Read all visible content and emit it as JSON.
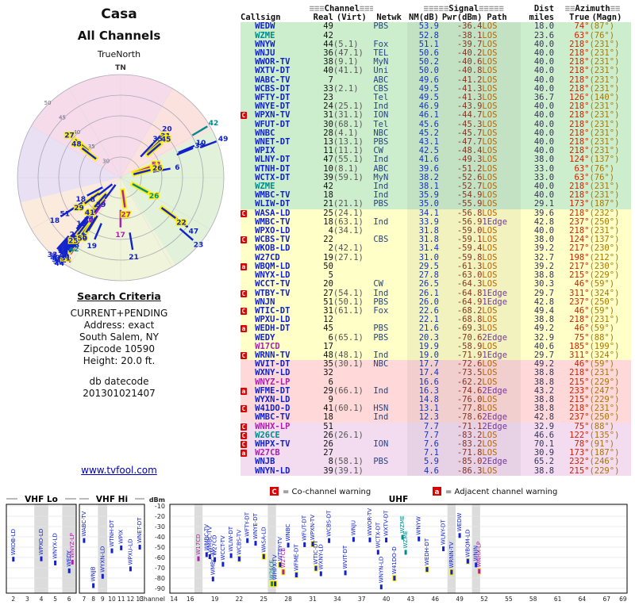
{
  "page": {
    "title1": "Casa",
    "title2": "All Channels",
    "compass_label": "TrueNorth",
    "north_marker": "TN",
    "link": "www.tvfool.com"
  },
  "search_criteria": {
    "heading": "Search Criteria",
    "lines": [
      "CURRENT+PENDING",
      "Address: exact",
      "South Salem, NY",
      "Zipcode 10590",
      "Height: 20.0 ft."
    ],
    "db_label": "db datecode",
    "db_value": "201301021407"
  },
  "legend": {
    "c_symbol": "C",
    "c_text": "= Co-channel warning",
    "a_symbol": "a",
    "a_text": "= Adjacent channel warning"
  },
  "radar": {
    "ring_labels": [
      "30",
      "35",
      "40",
      "45",
      "50"
    ]
  },
  "spectrum": {
    "dbm_label": "dBm",
    "channel_axis_label": "Channel",
    "vhf_lo_label": "VHF Lo",
    "vhf_hi_label": "VHF Hi",
    "uhf_label": "UHF",
    "dbm_ticks": [
      -10,
      -20,
      -30,
      -40,
      -50,
      -60,
      -70,
      -80,
      -90
    ],
    "vhf_ticks": [
      2,
      3,
      4,
      5,
      6,
      7,
      8,
      9,
      10,
      11,
      12,
      13
    ],
    "uhf_ticks": [
      14,
      16,
      19,
      22,
      25,
      28,
      31,
      34,
      37,
      40,
      43,
      46,
      49,
      52,
      55,
      58,
      61,
      64,
      67,
      69
    ],
    "gray_channels": [
      4,
      6,
      9,
      17,
      26,
      48,
      51
    ]
  },
  "table": {
    "deco": {
      "d2": "≡≡",
      "d3": "≡≡≡",
      "d5": "≡≡≡≡≡"
    },
    "group_headers": {
      "channel": "Channel",
      "signal": "Signal",
      "dist": "Dist",
      "azimuth": "Azimuth"
    },
    "columns": [
      "Callsign",
      "Real",
      "(Virt)",
      "Netwk",
      "NM(dB)",
      "Pwr(dBm)",
      "Path",
      "miles",
      "True",
      "(Magn)"
    ],
    "rows": [
      {
        "w": "",
        "cs": "WEDW",
        "real": "49",
        "virt": "",
        "net": "PBS",
        "nm": "53.9",
        "pwr": "-36.4",
        "path": "LOS",
        "mi": "18.0",
        "tru": "74°",
        "mag": "(87°)",
        "band": "green",
        "c": "d"
      },
      {
        "w": "",
        "cs": "WZME",
        "real": "42",
        "virt": "",
        "net": "",
        "nm": "52.8",
        "pwr": "-38.1",
        "path": "LOS",
        "mi": "23.6",
        "tru": "63°",
        "mag": "(76°)",
        "band": "green",
        "c": "p"
      },
      {
        "w": "",
        "cs": "WNYW",
        "real": "44",
        "virt": "(5.1)",
        "net": "Fox",
        "nm": "51.1",
        "pwr": "-39.7",
        "path": "LOS",
        "mi": "40.0",
        "tru": "218°",
        "mag": "(231°)",
        "band": "green",
        "c": "d"
      },
      {
        "w": "",
        "cs": "WNJU",
        "real": "36",
        "virt": "(47.1)",
        "net": "TEL",
        "nm": "50.6",
        "pwr": "-40.2",
        "path": "LOS",
        "mi": "40.0",
        "tru": "218°",
        "mag": "(231°)",
        "band": "green",
        "c": "d"
      },
      {
        "w": "",
        "cs": "WWOR-TV",
        "real": "38",
        "virt": "(9.1)",
        "net": "MyN",
        "nm": "50.2",
        "pwr": "-40.6",
        "path": "LOS",
        "mi": "40.0",
        "tru": "218°",
        "mag": "(231°)",
        "band": "green",
        "c": "d"
      },
      {
        "w": "",
        "cs": "WXTV-DT",
        "real": "40",
        "virt": "(41.1)",
        "net": "Uni",
        "nm": "50.0",
        "pwr": "-40.8",
        "path": "LOS",
        "mi": "40.0",
        "tru": "218°",
        "mag": "(231°)",
        "band": "green",
        "c": "d"
      },
      {
        "w": "",
        "cs": "WABC-TV",
        "real": "7",
        "virt": "",
        "net": "ABC",
        "nm": "49.6",
        "pwr": "-41.2",
        "path": "LOS",
        "mi": "40.0",
        "tru": "218°",
        "mag": "(231°)",
        "band": "green",
        "c": "d"
      },
      {
        "w": "",
        "cs": "WCBS-DT",
        "real": "33",
        "virt": "(2.1)",
        "net": "CBS",
        "nm": "49.5",
        "pwr": "-41.3",
        "path": "LOS",
        "mi": "40.0",
        "tru": "218°",
        "mag": "(231°)",
        "band": "green",
        "c": "d"
      },
      {
        "w": "",
        "cs": "WFTY-DT",
        "real": "23",
        "virt": "",
        "net": "Tel",
        "nm": "49.5",
        "pwr": "-41.3",
        "path": "LOS",
        "mi": "36.7",
        "tru": "126°",
        "mag": "(140°)",
        "band": "green",
        "c": "d"
      },
      {
        "w": "",
        "cs": "WNYE-DT",
        "real": "24",
        "virt": "(25.1)",
        "net": "Ind",
        "nm": "46.9",
        "pwr": "-43.9",
        "path": "LOS",
        "mi": "40.0",
        "tru": "218°",
        "mag": "(231°)",
        "band": "green",
        "c": "d"
      },
      {
        "w": "C",
        "cs": "WPXN-TV",
        "real": "31",
        "virt": "(31.1)",
        "net": "ION",
        "nm": "46.1",
        "pwr": "-44.7",
        "path": "LOS",
        "mi": "40.0",
        "tru": "218°",
        "mag": "(231°)",
        "band": "green",
        "c": "d"
      },
      {
        "w": "",
        "cs": "WFUT-DT",
        "real": "30",
        "virt": "(68.1)",
        "net": "Tel",
        "nm": "45.6",
        "pwr": "-45.3",
        "path": "LOS",
        "mi": "40.0",
        "tru": "218°",
        "mag": "(231°)",
        "band": "green",
        "c": "d"
      },
      {
        "w": "",
        "cs": "WNBC",
        "real": "28",
        "virt": "(4.1)",
        "net": "NBC",
        "nm": "45.2",
        "pwr": "-45.7",
        "path": "LOS",
        "mi": "40.0",
        "tru": "218°",
        "mag": "(231°)",
        "band": "green",
        "c": "d"
      },
      {
        "w": "",
        "cs": "WNET-DT",
        "real": "13",
        "virt": "(13.1)",
        "net": "PBS",
        "nm": "43.1",
        "pwr": "-47.7",
        "path": "LOS",
        "mi": "40.0",
        "tru": "218°",
        "mag": "(231°)",
        "band": "green",
        "c": "d"
      },
      {
        "w": "",
        "cs": "WPIX",
        "real": "11",
        "virt": "(11.1)",
        "net": "CW",
        "nm": "42.5",
        "pwr": "-48.4",
        "path": "LOS",
        "mi": "40.0",
        "tru": "218°",
        "mag": "(231°)",
        "band": "green",
        "c": "d"
      },
      {
        "w": "",
        "cs": "WLNY-DT",
        "real": "47",
        "virt": "(55.1)",
        "net": "Ind",
        "nm": "41.6",
        "pwr": "-49.3",
        "path": "LOS",
        "mi": "38.0",
        "tru": "124°",
        "mag": "(137°)",
        "band": "green",
        "c": "d"
      },
      {
        "w": "",
        "cs": "WTNH-DT",
        "real": "10",
        "virt": "(8.1)",
        "net": "ABC",
        "nm": "39.6",
        "pwr": "-51.2",
        "path": "LOS",
        "mi": "33.0",
        "tru": "63°",
        "mag": "(76°)",
        "band": "green",
        "c": "d"
      },
      {
        "w": "",
        "cs": "WCTX-DT",
        "real": "39",
        "virt": "(59.1)",
        "net": "MyN",
        "nm": "38.2",
        "pwr": "-52.6",
        "path": "LOS",
        "mi": "33.0",
        "tru": "63°",
        "mag": "(76°)",
        "band": "green",
        "c": "d"
      },
      {
        "w": "",
        "cs": "WZME",
        "real": "42",
        "virt": "",
        "net": "Ind",
        "nm": "38.1",
        "pwr": "-52.7",
        "path": "LOS",
        "mi": "40.0",
        "tru": "218°",
        "mag": "(231°)",
        "band": "green",
        "c": "p"
      },
      {
        "w": "",
        "cs": "WMBC-TV",
        "real": "18",
        "virt": "",
        "net": "Ind",
        "nm": "35.9",
        "pwr": "-54.9",
        "path": "LOS",
        "mi": "40.0",
        "tru": "218°",
        "mag": "(231°)",
        "band": "green",
        "c": "d"
      },
      {
        "w": "",
        "cs": "WLIW-DT",
        "real": "21",
        "virt": "(21.1)",
        "net": "PBS",
        "nm": "35.0",
        "pwr": "-55.9",
        "path": "LOS",
        "mi": "29.1",
        "tru": "173°",
        "mag": "(187°)",
        "band": "green",
        "c": "d"
      },
      {
        "w": "C",
        "cs": "WASA-LD",
        "real": "25",
        "virt": "(24.1)",
        "net": "",
        "nm": "34.1",
        "pwr": "-56.8",
        "path": "LOS",
        "mi": "39.6",
        "tru": "218°",
        "mag": "(232°)",
        "band": "yellow",
        "c": "d"
      },
      {
        "w": "",
        "cs": "WMBC-TV",
        "real": "18",
        "virt": "(63.1)",
        "net": "Ind",
        "nm": "33.9",
        "pwr": "-56.9",
        "path": "1Edge",
        "mi": "42.8",
        "tru": "237°",
        "mag": "(250°)",
        "band": "yellow",
        "c": "d"
      },
      {
        "w": "",
        "cs": "WPXO-LD",
        "real": "4",
        "virt": "(34.1)",
        "net": "",
        "nm": "31.8",
        "pwr": "-59.0",
        "path": "LOS",
        "mi": "40.0",
        "tru": "218°",
        "mag": "(231°)",
        "band": "yellow",
        "c": "d"
      },
      {
        "w": "C",
        "cs": "WCBS-TV",
        "real": "22",
        "virt": "",
        "net": "CBS",
        "nm": "31.8",
        "pwr": "-59.1",
        "path": "LOS",
        "mi": "38.0",
        "tru": "124°",
        "mag": "(137°)",
        "band": "yellow",
        "c": "d"
      },
      {
        "w": "",
        "cs": "WKOB-LD",
        "real": "2",
        "virt": "(42.1)",
        "net": "",
        "nm": "31.4",
        "pwr": "-59.4",
        "path": "LOS",
        "mi": "39.2",
        "tru": "217°",
        "mag": "(230°)",
        "band": "yellow",
        "c": "d"
      },
      {
        "w": "",
        "cs": "W27CD",
        "real": "19",
        "virt": "(27.1)",
        "net": "",
        "nm": "31.0",
        "pwr": "-59.8",
        "path": "LOS",
        "mi": "32.7",
        "tru": "198°",
        "mag": "(212°)",
        "band": "yellow",
        "c": "d"
      },
      {
        "w": "a",
        "cs": "WBQM-LD",
        "real": "50",
        "virt": "",
        "net": "",
        "nm": "29.5",
        "pwr": "-61.3",
        "path": "LOS",
        "mi": "39.2",
        "tru": "217°",
        "mag": "(230°)",
        "band": "yellow",
        "c": "d"
      },
      {
        "w": "",
        "cs": "WNYX-LD",
        "real": "5",
        "virt": "",
        "net": "",
        "nm": "27.8",
        "pwr": "-63.0",
        "path": "LOS",
        "mi": "38.8",
        "tru": "215°",
        "mag": "(229°)",
        "band": "yellow",
        "c": "d"
      },
      {
        "w": "",
        "cs": "WCCT-TV",
        "real": "20",
        "virt": "",
        "net": "CW",
        "nm": "26.5",
        "pwr": "-64.3",
        "path": "LOS",
        "mi": "30.3",
        "tru": "46°",
        "mag": "(59°)",
        "band": "yellow",
        "c": "d"
      },
      {
        "w": "C",
        "cs": "WTBY-TV",
        "real": "27",
        "virt": "(54.1)",
        "net": "Ind",
        "nm": "26.1",
        "pwr": "-64.8",
        "path": "1Edge",
        "mi": "29.7",
        "tru": "311°",
        "mag": "(324°)",
        "band": "yellow",
        "c": "d"
      },
      {
        "w": "",
        "cs": "WNJN",
        "real": "51",
        "virt": "(50.1)",
        "net": "PBS",
        "nm": "26.0",
        "pwr": "-64.9",
        "path": "1Edge",
        "mi": "42.8",
        "tru": "237°",
        "mag": "(250°)",
        "band": "yellow",
        "c": "d"
      },
      {
        "w": "C",
        "cs": "WTIC-DT",
        "real": "31",
        "virt": "(61.1)",
        "net": "Fox",
        "nm": "22.6",
        "pwr": "-68.2",
        "path": "LOS",
        "mi": "49.4",
        "tru": "46°",
        "mag": "(59°)",
        "band": "yellow",
        "c": "d"
      },
      {
        "w": "",
        "cs": "WPXU-LD",
        "real": "12",
        "virt": "",
        "net": "",
        "nm": "22.1",
        "pwr": "-68.8",
        "path": "LOS",
        "mi": "38.8",
        "tru": "218°",
        "mag": "(231°)",
        "band": "yellow",
        "c": "d"
      },
      {
        "w": "a",
        "cs": "WEDH-DT",
        "real": "45",
        "virt": "",
        "net": "PBS",
        "nm": "21.6",
        "pwr": "-69.3",
        "path": "LOS",
        "mi": "49.2",
        "tru": "46°",
        "mag": "(59°)",
        "band": "yellow",
        "c": "d"
      },
      {
        "w": "",
        "cs": "WEDY",
        "real": "6",
        "virt": "(65.1)",
        "net": "PBS",
        "nm": "20.3",
        "pwr": "-70.6",
        "path": "2Edge",
        "mi": "32.9",
        "tru": "75°",
        "mag": "(88°)",
        "band": "yellow",
        "c": "d"
      },
      {
        "w": "",
        "cs": "W17CD",
        "real": "17",
        "virt": "",
        "net": "",
        "nm": "19.9",
        "pwr": "-58.9",
        "path": "LOS",
        "mi": "40.6",
        "tru": "185°",
        "mag": "(199°)",
        "band": "yellow",
        "c": "a"
      },
      {
        "w": "C",
        "cs": "WRNN-TV",
        "real": "48",
        "virt": "(48.1)",
        "net": "Ind",
        "nm": "19.0",
        "pwr": "-71.9",
        "path": "1Edge",
        "mi": "29.7",
        "tru": "311°",
        "mag": "(324°)",
        "band": "yellow",
        "c": "d"
      },
      {
        "w": "",
        "cs": "WVIT-DT",
        "real": "35",
        "virt": "(30.1)",
        "net": "NBC",
        "nm": "17.7",
        "pwr": "-72.6",
        "path": "LOS",
        "mi": "49.2",
        "tru": "46°",
        "mag": "(59°)",
        "band": "pink",
        "c": "d"
      },
      {
        "w": "",
        "cs": "WXNY-LD",
        "real": "32",
        "virt": "",
        "net": "",
        "nm": "17.4",
        "pwr": "-73.5",
        "path": "LOS",
        "mi": "38.8",
        "tru": "218°",
        "mag": "(231°)",
        "band": "pink",
        "c": "d"
      },
      {
        "w": "",
        "cs": "WNYZ-LP",
        "real": "6",
        "virt": "",
        "net": "",
        "nm": "16.6",
        "pwr": "-62.2",
        "path": "LOS",
        "mi": "38.8",
        "tru": "215°",
        "mag": "(229°)",
        "band": "pink",
        "c": "a"
      },
      {
        "w": "a",
        "cs": "WFME-DT",
        "real": "29",
        "virt": "(66.1)",
        "net": "Ind",
        "nm": "16.3",
        "pwr": "-74.6",
        "path": "2Edge",
        "mi": "43.2",
        "tru": "233°",
        "mag": "(247°)",
        "band": "pink",
        "c": "d"
      },
      {
        "w": "",
        "cs": "WYXN-LD",
        "real": "9",
        "virt": "",
        "net": "",
        "nm": "14.8",
        "pwr": "-76.0",
        "path": "LOS",
        "mi": "38.8",
        "tru": "215°",
        "mag": "(229°)",
        "band": "pink",
        "c": "d"
      },
      {
        "w": "C",
        "cs": "W41DO-D",
        "real": "41",
        "virt": "(60.1)",
        "net": "HSN",
        "nm": "13.1",
        "pwr": "-77.8",
        "path": "LOS",
        "mi": "38.8",
        "tru": "218°",
        "mag": "(231°)",
        "band": "pink",
        "c": "d"
      },
      {
        "w": "",
        "cs": "WMBC-TV",
        "real": "18",
        "virt": "",
        "net": "Ind",
        "nm": "12.3",
        "pwr": "-78.6",
        "path": "2Edge",
        "mi": "42.8",
        "tru": "237°",
        "mag": "(250°)",
        "band": "pink",
        "c": "d"
      },
      {
        "w": "C",
        "cs": "WNHX-LP",
        "real": "51",
        "virt": "",
        "net": "",
        "nm": "7.7",
        "pwr": "-71.1",
        "path": "2Edge",
        "mi": "32.9",
        "tru": "75°",
        "mag": "(88°)",
        "band": "violet",
        "c": "a"
      },
      {
        "w": "C",
        "cs": "W26CE",
        "real": "26",
        "virt": "(26.1)",
        "net": "",
        "nm": "7.7",
        "pwr": "-83.2",
        "path": "LOS",
        "mi": "46.6",
        "tru": "122°",
        "mag": "(135°)",
        "band": "violet",
        "c": "p"
      },
      {
        "w": "C",
        "cs": "WHPX-TV",
        "real": "26",
        "virt": "",
        "net": "ION",
        "nm": "7.6",
        "pwr": "-83.2",
        "path": "LOS",
        "mi": "70.1",
        "tru": "78°",
        "mag": "(91°)",
        "band": "violet",
        "c": "d"
      },
      {
        "w": "a",
        "cs": "W27CB",
        "real": "27",
        "virt": "",
        "net": "",
        "nm": "7.1",
        "pwr": "-71.8",
        "path": "LOS",
        "mi": "30.9",
        "tru": "173°",
        "mag": "(187°)",
        "band": "violet",
        "c": "a"
      },
      {
        "w": "",
        "cs": "WNJB",
        "real": "8",
        "virt": "(58.1)",
        "net": "PBS",
        "nm": "5.9",
        "pwr": "-85.0",
        "path": "2Edge",
        "mi": "65.2",
        "tru": "232°",
        "mag": "(246°)",
        "band": "violet",
        "c": "d"
      },
      {
        "w": "",
        "cs": "WNYN-LD",
        "real": "39",
        "virt": "(39.1)",
        "net": "",
        "nm": "4.6",
        "pwr": "-86.3",
        "path": "LOS",
        "mi": "38.8",
        "tru": "215°",
        "mag": "(229°)",
        "band": "violet",
        "c": "d"
      }
    ]
  }
}
